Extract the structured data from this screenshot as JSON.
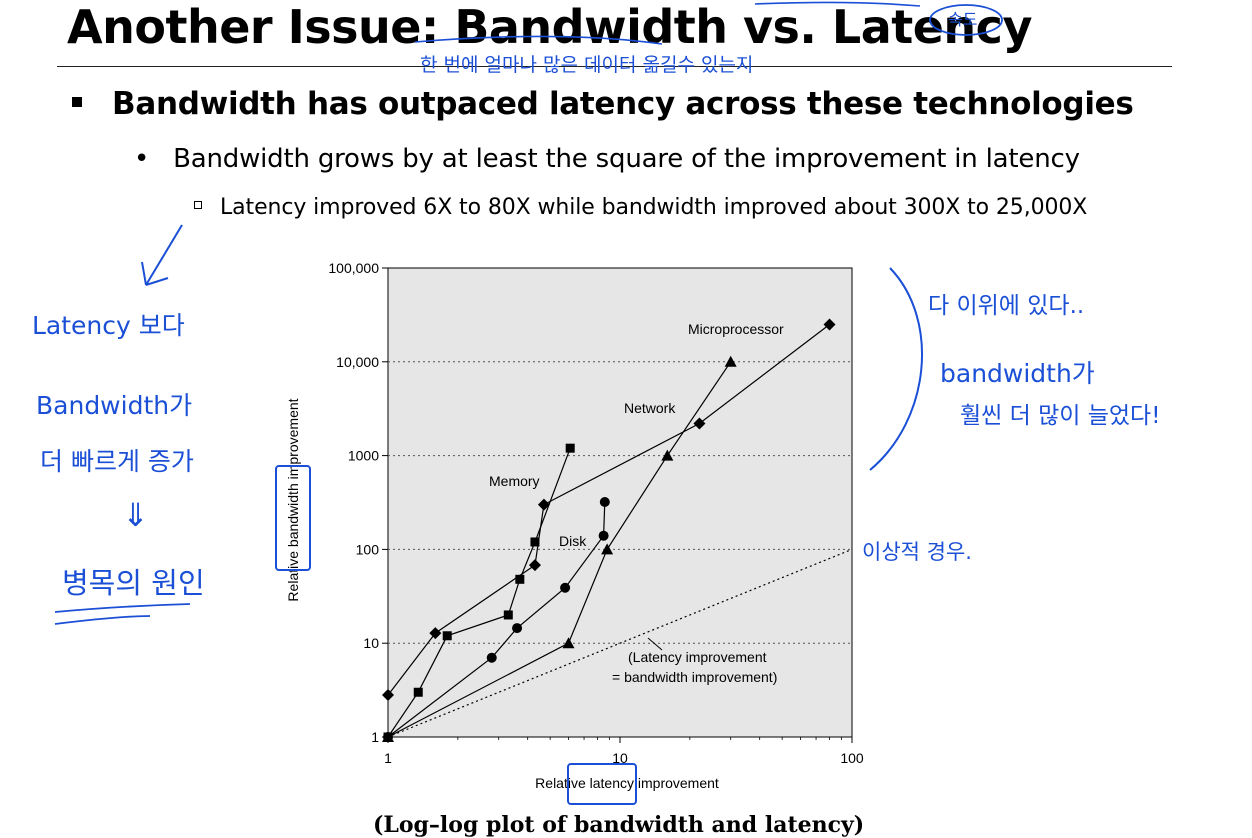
{
  "slide": {
    "title": "Another Issue: Bandwidth vs. Latency",
    "bullet1": "Bandwidth has outpaced latency across these technologies",
    "bullet2": "Bandwidth grows by at least the square of the improvement in latency",
    "bullet3": "Latency improved 6X to 80X while bandwidth improved about 300X to 25,000X",
    "caption": "(Log–log plot of bandwidth and latency)"
  },
  "chart_data": {
    "type": "line",
    "scale": "log-log",
    "xlabel": "Relative latency improvement",
    "ylabel": "Relative bandwidth improvement",
    "xlim": [
      1,
      100
    ],
    "ylim": [
      1,
      100000
    ],
    "x_ticks": [
      "1",
      "10",
      "100"
    ],
    "y_ticks": [
      "1",
      "10",
      "100",
      "1000",
      "10,000",
      "100,000"
    ],
    "grid": "horizontal dotted",
    "plot_background": "#e6e6e6",
    "series": [
      {
        "name": "Microprocessor",
        "marker": "diamond",
        "points": [
          [
            1,
            2.8
          ],
          [
            1.6,
            12.8
          ],
          [
            4.3,
            68
          ],
          [
            4.7,
            300
          ],
          [
            22,
            2200
          ],
          [
            80,
            25000
          ]
        ]
      },
      {
        "name": "Memory",
        "marker": "square",
        "points": [
          [
            1,
            1
          ],
          [
            1.35,
            3
          ],
          [
            1.8,
            12
          ],
          [
            3.3,
            20
          ],
          [
            3.7,
            48
          ],
          [
            4.3,
            120
          ],
          [
            6.1,
            1200
          ]
        ]
      },
      {
        "name": "Disk",
        "marker": "circle",
        "points": [
          [
            1,
            1
          ],
          [
            2.8,
            7
          ],
          [
            3.6,
            14.5
          ],
          [
            5.8,
            39
          ],
          [
            8.5,
            140
          ],
          [
            8.6,
            320
          ]
        ]
      },
      {
        "name": "Network",
        "marker": "triangle",
        "points": [
          [
            1,
            1
          ],
          [
            6,
            10
          ],
          [
            8.8,
            100
          ],
          [
            16,
            1000
          ],
          [
            30,
            10000
          ]
        ]
      },
      {
        "name": "",
        "style": "dotted",
        "marker": "none",
        "points": [
          [
            1,
            1
          ],
          [
            100,
            100
          ]
        ]
      }
    ],
    "annotations": [
      "(Latency improvement",
      "= bandwidth improvement)"
    ]
  },
  "handwriting": {
    "left": [
      "Latency 보다",
      "Bandwidth가",
      "더 빠르게 증가",
      "⇓",
      "병목의 원인"
    ],
    "right": [
      "다 이위에 있다..",
      "bandwidth가",
      "훨씬 더 많이 늘었다!"
    ],
    "ideal": "이상적 경우.",
    "under_title": "한 번에 얼마나 많은 데이터 옮길수 있는지",
    "circle_note": "속도"
  },
  "colors": {
    "ink": "#1a4fd6"
  }
}
